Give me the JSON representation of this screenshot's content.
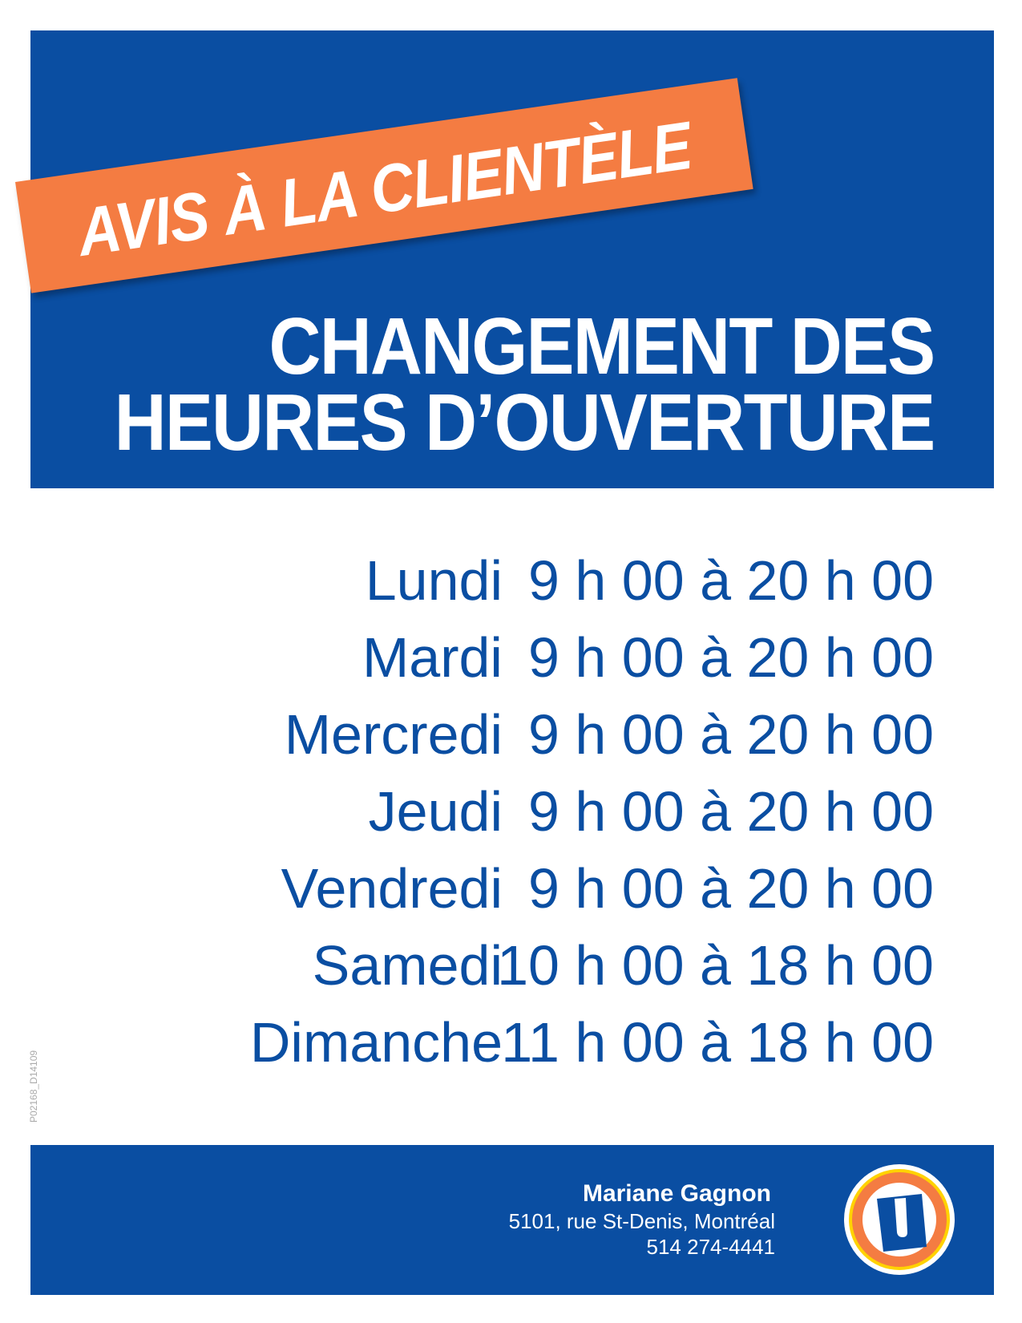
{
  "banner": {
    "text": "AVIS À LA CLIENTÈLE"
  },
  "title": {
    "line1": "CHANGEMENT DES",
    "line2": "HEURES D’OUVERTURE"
  },
  "schedule": [
    {
      "day": "Lundi",
      "hours": "9 h 00 à 20 h 00"
    },
    {
      "day": "Mardi",
      "hours": "9 h 00 à 20 h 00"
    },
    {
      "day": "Mercredi",
      "hours": "9 h 00 à 20 h 00"
    },
    {
      "day": "Jeudi",
      "hours": "9 h 00 à 20 h 00"
    },
    {
      "day": "Vendredi",
      "hours": "9 h 00 à 20 h 00"
    },
    {
      "day": "Samedi",
      "hours": "10 h 00 à 18 h 00"
    },
    {
      "day": "Dimanche",
      "hours": "11 h 00 à 18 h 00"
    }
  ],
  "doc_code": "P02168_D14109",
  "footer": {
    "name": "Mariane Gagnon",
    "address": "5101, rue St-Denis, Montréal",
    "phone": "514 274-4441",
    "logo": "uniprix-u-logo"
  },
  "colors": {
    "blue": "#0a4ea2",
    "orange": "#f47c42",
    "yellow": "#ffd200"
  }
}
